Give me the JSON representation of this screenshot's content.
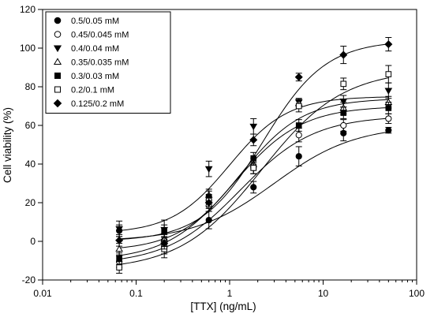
{
  "chart_data": {
    "type": "scatter",
    "title": "",
    "xlabel": "[TTX] (ng/mL)",
    "ylabel": "Cell viability (%)",
    "xscale": "log",
    "xlim": [
      0.01,
      100
    ],
    "ylim": [
      -20,
      120
    ],
    "x_ticks": [
      0.01,
      0.1,
      1,
      10,
      100
    ],
    "x_tick_labels": [
      "0.01",
      "0.1",
      "1",
      "10",
      "100"
    ],
    "y_ticks": [
      -20,
      0,
      20,
      40,
      60,
      80,
      100,
      120
    ],
    "y_tick_labels": [
      "-20",
      "0",
      "20",
      "40",
      "60",
      "80",
      "100",
      "120"
    ],
    "grid": false,
    "legend_position": "top-left",
    "fit_curves": "sigmoidal dose-response (drawn through each series)",
    "x": [
      0.066,
      0.2,
      0.6,
      1.8,
      5.5,
      16.5,
      50
    ],
    "series": [
      {
        "name": "0.5/0.05 mM",
        "marker": "filled-circle",
        "values": [
          5.5,
          0.5,
          11,
          28,
          44,
          56,
          57.5
        ],
        "errors": [
          3,
          3,
          4.5,
          3,
          5,
          4,
          1.5
        ]
      },
      {
        "name": "0.45/0.045 mM",
        "marker": "open-circle",
        "values": [
          -10.5,
          -3,
          18.5,
          38,
          55,
          60,
          63.5
        ],
        "errors": [
          3,
          3.5,
          3,
          3,
          3.5,
          3,
          2.5
        ]
      },
      {
        "name": "0.4/0.04 mM",
        "marker": "filled-triangle-down",
        "values": [
          6.5,
          6,
          37.5,
          59.5,
          72,
          72.5,
          78
        ],
        "errors": [
          4,
          5,
          4,
          4,
          2,
          3,
          4
        ]
      },
      {
        "name": "0.35/0.035 mM",
        "marker": "open-triangle-up",
        "values": [
          -4,
          1,
          24,
          40,
          71.5,
          69,
          72
        ],
        "errors": [
          3,
          3,
          3,
          3,
          2,
          3,
          3
        ]
      },
      {
        "name": "0.3/0.03 mM",
        "marker": "filled-square",
        "values": [
          -9,
          5.5,
          23,
          43,
          60,
          66.5,
          69
        ],
        "errors": [
          3,
          3,
          3,
          3,
          3,
          3,
          3
        ]
      },
      {
        "name": "0.2/0.1 mM",
        "marker": "open-square",
        "values": [
          -13.5,
          -4,
          21,
          38,
          70,
          81.5,
          86.5
        ],
        "errors": [
          3,
          4.5,
          3,
          3,
          3,
          3,
          4.5
        ]
      },
      {
        "name": "0.125/0.2 mM",
        "marker": "filled-diamond",
        "values": [
          0.5,
          -1,
          20,
          52.5,
          85,
          96.5,
          102
        ],
        "errors": [
          3,
          3,
          3,
          3,
          2,
          4.5,
          3.5
        ]
      }
    ],
    "fits": [
      {
        "bottom": 0,
        "top": 60,
        "ec50": 3.0,
        "hill": 1.0
      },
      {
        "bottom": -12,
        "top": 65,
        "ec50": 1.3,
        "hill": 1.1
      },
      {
        "bottom": 4,
        "top": 75,
        "ec50": 1.0,
        "hill": 1.4
      },
      {
        "bottom": -5,
        "top": 74,
        "ec50": 1.3,
        "hill": 1.3
      },
      {
        "bottom": -10,
        "top": 70,
        "ec50": 1.1,
        "hill": 1.2
      },
      {
        "bottom": -15,
        "top": 89,
        "ec50": 2.2,
        "hill": 1.0
      },
      {
        "bottom": 0,
        "top": 104,
        "ec50": 2.3,
        "hill": 1.3
      }
    ]
  }
}
